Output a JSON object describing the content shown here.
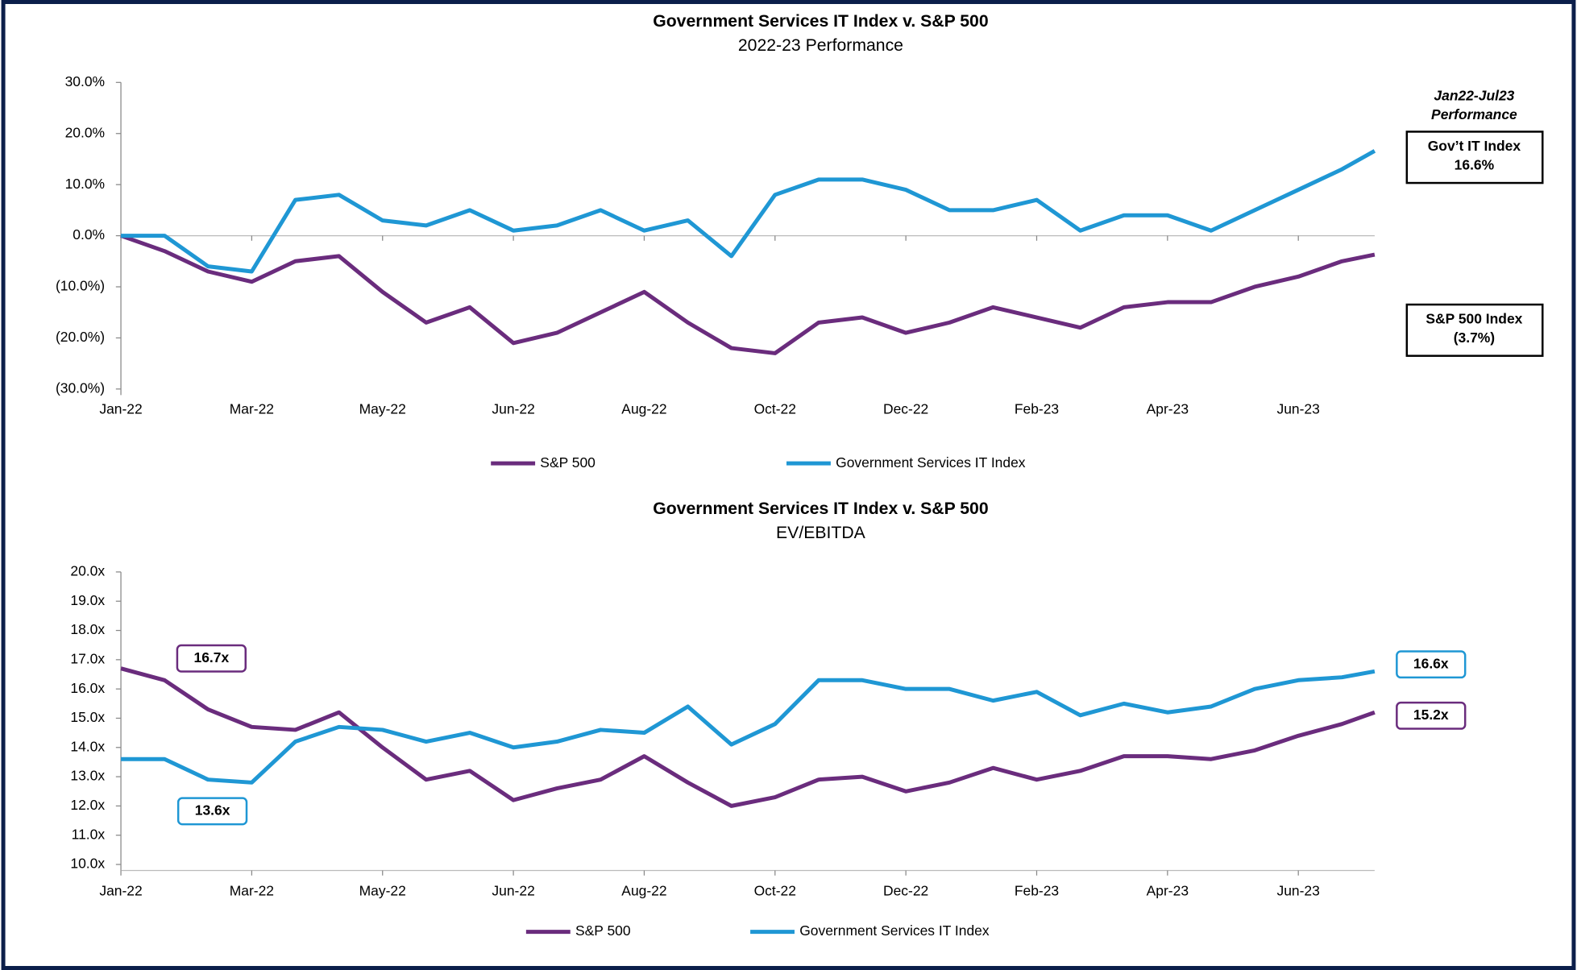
{
  "chart_data": [
    {
      "type": "line",
      "title": "Government Services IT Index v. S&P 500",
      "subtitle": "2022-23 Performance",
      "x": [
        0,
        20,
        40,
        60,
        80,
        100,
        120,
        140,
        160,
        180,
        200,
        220,
        240,
        260,
        280,
        300,
        320,
        340,
        360,
        380,
        400,
        420,
        440,
        460,
        480,
        500,
        520,
        540,
        560,
        575
      ],
      "xlim": [
        0,
        575
      ],
      "xticks": [
        {
          "value": 0,
          "label": "Jan-22"
        },
        {
          "value": 60,
          "label": "Mar-22"
        },
        {
          "value": 120,
          "label": "May-22"
        },
        {
          "value": 180,
          "label": "Jun-22"
        },
        {
          "value": 240,
          "label": "Aug-22"
        },
        {
          "value": 300,
          "label": "Oct-22"
        },
        {
          "value": 360,
          "label": "Dec-22"
        },
        {
          "value": 420,
          "label": "Feb-23"
        },
        {
          "value": 480,
          "label": "Apr-23"
        },
        {
          "value": 540,
          "label": "Jun-23"
        }
      ],
      "ylim": [
        -30,
        30
      ],
      "yticks": [
        {
          "value": 30,
          "label": "30.0%"
        },
        {
          "value": 20,
          "label": "20.0%"
        },
        {
          "value": 10,
          "label": "10.0%"
        },
        {
          "value": 0,
          "label": "0.0%"
        },
        {
          "value": -10,
          "label": "(10.0%)"
        },
        {
          "value": -20,
          "label": "(20.0%)"
        },
        {
          "value": -30,
          "label": "(30.0%)"
        }
      ],
      "series": [
        {
          "name": "S&P 500",
          "color": "#6a2c7d",
          "values": [
            0,
            -3,
            -7,
            -9,
            -5,
            -4,
            -11,
            -17,
            -14,
            -21,
            -19,
            -15,
            -11,
            -17,
            -22,
            -23,
            -17,
            -16,
            -19,
            -17,
            -14,
            -16,
            -18,
            -14,
            -13,
            -13,
            -10,
            -8,
            -5,
            -3.7
          ]
        },
        {
          "name": "Government Services IT Index",
          "color": "#1f97d4",
          "values": [
            0,
            0,
            -6,
            -7,
            7,
            8,
            3,
            2,
            5,
            1,
            2,
            5,
            1,
            3,
            -4,
            8,
            11,
            11,
            9,
            5,
            5,
            7,
            1,
            4,
            4,
            1,
            5,
            9,
            13,
            16.6
          ]
        }
      ],
      "side_panel": {
        "heading": [
          "Jan22-Jul23",
          "Performance"
        ],
        "boxes": [
          {
            "label": "Gov’t IT Index",
            "value": "16.6%",
            "color": "#00a651"
          },
          {
            "label": "S&P 500 Index",
            "value": "(3.7%)",
            "color": "#ff0000"
          }
        ]
      }
    },
    {
      "type": "line",
      "title": "Government Services IT Index v. S&P 500",
      "subtitle": "EV/EBITDA",
      "x": [
        0,
        20,
        40,
        60,
        80,
        100,
        120,
        140,
        160,
        180,
        200,
        220,
        240,
        260,
        280,
        300,
        320,
        340,
        360,
        380,
        400,
        420,
        440,
        460,
        480,
        500,
        520,
        540,
        560,
        575
      ],
      "xlim": [
        0,
        575
      ],
      "xticks": [
        {
          "value": 0,
          "label": "Jan-22"
        },
        {
          "value": 60,
          "label": "Mar-22"
        },
        {
          "value": 120,
          "label": "May-22"
        },
        {
          "value": 180,
          "label": "Jun-22"
        },
        {
          "value": 240,
          "label": "Aug-22"
        },
        {
          "value": 300,
          "label": "Oct-22"
        },
        {
          "value": 360,
          "label": "Dec-22"
        },
        {
          "value": 420,
          "label": "Feb-23"
        },
        {
          "value": 480,
          "label": "Apr-23"
        },
        {
          "value": 540,
          "label": "Jun-23"
        }
      ],
      "ylim": [
        10,
        20
      ],
      "yticks": [
        {
          "value": 20,
          "label": "20.0x"
        },
        {
          "value": 19,
          "label": "19.0x"
        },
        {
          "value": 18,
          "label": "18.0x"
        },
        {
          "value": 17,
          "label": "17.0x"
        },
        {
          "value": 16,
          "label": "16.0x"
        },
        {
          "value": 15,
          "label": "15.0x"
        },
        {
          "value": 14,
          "label": "14.0x"
        },
        {
          "value": 13,
          "label": "13.0x"
        },
        {
          "value": 12,
          "label": "12.0x"
        },
        {
          "value": 11,
          "label": "11.0x"
        },
        {
          "value": 10,
          "label": "10.0x"
        }
      ],
      "series": [
        {
          "name": "S&P 500",
          "color": "#6a2c7d",
          "values": [
            16.7,
            16.3,
            15.3,
            14.7,
            14.6,
            15.2,
            14.0,
            12.9,
            13.2,
            12.2,
            12.6,
            12.9,
            13.7,
            12.8,
            12.0,
            12.3,
            12.9,
            13.0,
            12.5,
            12.8,
            13.3,
            12.9,
            13.2,
            13.7,
            13.7,
            13.6,
            13.9,
            14.4,
            14.8,
            15.2
          ]
        },
        {
          "name": "Government Services IT Index",
          "color": "#1f97d4",
          "values": [
            13.6,
            13.6,
            12.9,
            12.8,
            14.2,
            14.7,
            14.6,
            14.2,
            14.5,
            14.0,
            14.2,
            14.6,
            14.5,
            15.4,
            14.1,
            14.8,
            16.3,
            16.3,
            16.0,
            16.0,
            15.6,
            15.9,
            15.1,
            15.5,
            15.2,
            15.4,
            16.0,
            16.3,
            16.4,
            16.6
          ]
        }
      ],
      "annotations": [
        {
          "text": "16.7x",
          "series": 0
        },
        {
          "text": "13.6x",
          "series": 1
        },
        {
          "text": "16.6x",
          "series": 1
        },
        {
          "text": "15.2x",
          "series": 0
        }
      ]
    }
  ]
}
